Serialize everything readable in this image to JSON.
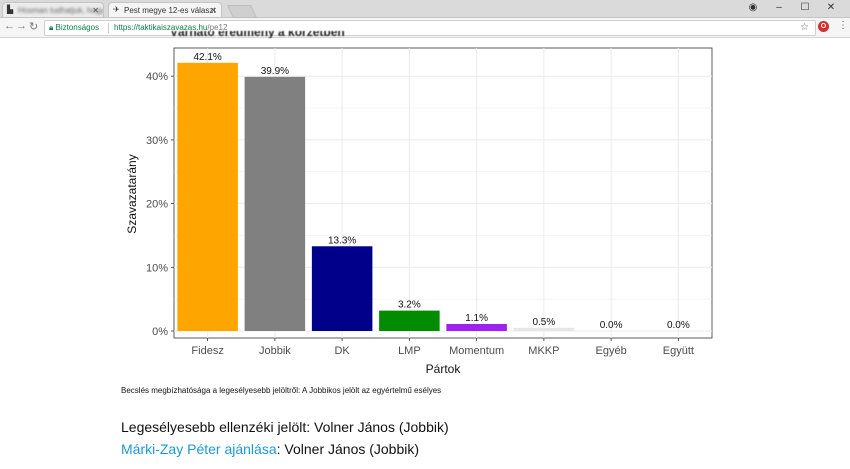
{
  "browser": {
    "tabs": [
      {
        "title": "Hosman tudhatjuk, hogy",
        "blurred": true
      },
      {
        "title": "Pest megye 12-es választ",
        "blurred": false
      }
    ],
    "secure_label": "Biztonságos",
    "url_host": "https://taktikaiszavazas.hu",
    "url_path": "/pe12"
  },
  "page": {
    "chart_title": "Várható eredmény a körzetben",
    "note": "Becslés megbízhatósága a legesélyesebb jelöltről: A Jobbikos jelölt az egyértelmű esélyes",
    "candidate_label": "Legesélyesebb ellenzéki jelölt:",
    "candidate_value": "Volner János (Jobbik)",
    "recommendation_link": "Márki-Zay Péter ajánlása",
    "recommendation_value": ": Volner János (Jobbik)"
  },
  "chart_data": {
    "type": "bar",
    "title": "",
    "xlabel": "Pártok",
    "ylabel": "Szavazatarány",
    "categories": [
      "Fidesz",
      "Jobbik",
      "DK",
      "LMP",
      "Momentum",
      "MKKP",
      "Egyéb",
      "Együtt"
    ],
    "values": [
      42.1,
      39.9,
      13.3,
      3.2,
      1.1,
      0.5,
      0.0,
      0.0
    ],
    "value_labels": [
      "42.1%",
      "39.9%",
      "13.3%",
      "3.2%",
      "1.1%",
      "0.5%",
      "0.0%",
      "0.0%"
    ],
    "colors": [
      "#FFA500",
      "#808080",
      "#00008B",
      "#008B00",
      "#A020F0",
      "#E6E6E6",
      "#FFFFFF",
      "#FFFFFF"
    ],
    "yticks": [
      0,
      10,
      20,
      30,
      40
    ],
    "ytick_labels": [
      "0%",
      "10%",
      "20%",
      "30%",
      "40%"
    ],
    "ylim": [
      0,
      43
    ],
    "grid": true
  }
}
